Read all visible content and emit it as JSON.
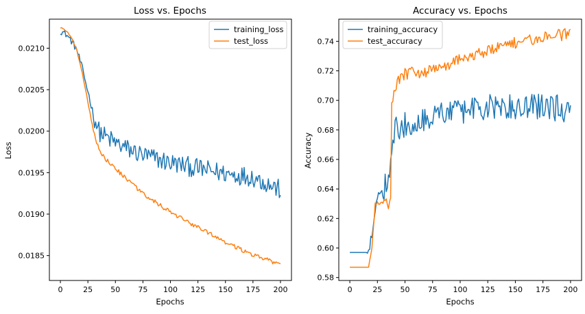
{
  "chart_data": [
    {
      "type": "line",
      "title": "Loss vs. Epochs",
      "xlabel": "Epochs",
      "ylabel": "Loss",
      "xlim": [
        -10,
        210
      ],
      "ylim": [
        0.0182,
        0.02135
      ],
      "xticks": [
        0,
        25,
        50,
        75,
        100,
        125,
        150,
        175,
        200
      ],
      "xtick_labels": [
        "0",
        "25",
        "50",
        "75",
        "100",
        "125",
        "150",
        "175",
        "200"
      ],
      "yticks": [
        0.0185,
        0.019,
        0.0195,
        0.02,
        0.0205,
        0.021
      ],
      "ytick_labels": [
        "0.0185",
        "0.0190",
        "0.0195",
        "0.0200",
        "0.0205",
        "0.0210"
      ],
      "grid": false,
      "legend_position": "top-right",
      "series": [
        {
          "name": "training_loss",
          "color": "#1f77b4",
          "anchors": [
            [
              0,
              0.02121
            ],
            [
              5,
              0.02117
            ],
            [
              10,
              0.02109
            ],
            [
              15,
              0.02098
            ],
            [
              20,
              0.02075
            ],
            [
              25,
              0.02048
            ],
            [
              30,
              0.0202
            ],
            [
              35,
              0.02
            ],
            [
              40,
              0.01994
            ],
            [
              50,
              0.01986
            ],
            [
              60,
              0.01979
            ],
            [
              75,
              0.01971
            ],
            [
              100,
              0.01962
            ],
            [
              125,
              0.01955
            ],
            [
              150,
              0.01949
            ],
            [
              175,
              0.01945
            ],
            [
              200,
              0.01929
            ]
          ],
          "noise": 0.00012
        },
        {
          "name": "test_loss",
          "color": "#ff7f0e",
          "anchors": [
            [
              0,
              0.02125
            ],
            [
              5,
              0.02121
            ],
            [
              10,
              0.02113
            ],
            [
              15,
              0.02097
            ],
            [
              20,
              0.0207
            ],
            [
              25,
              0.02035
            ],
            [
              30,
              0.02
            ],
            [
              35,
              0.01978
            ],
            [
              40,
              0.01968
            ],
            [
              50,
              0.01955
            ],
            [
              60,
              0.01942
            ],
            [
              75,
              0.01925
            ],
            [
              100,
              0.01902
            ],
            [
              125,
              0.01884
            ],
            [
              150,
              0.01866
            ],
            [
              175,
              0.01851
            ],
            [
              200,
              0.01839
            ]
          ],
          "noise": 2.5e-05
        }
      ]
    },
    {
      "type": "line",
      "title": "Accuracy vs. Epochs",
      "xlabel": "Epochs",
      "ylabel": "Accuracy",
      "xlim": [
        -10,
        210
      ],
      "ylim": [
        0.578,
        0.755
      ],
      "xticks": [
        0,
        25,
        50,
        75,
        100,
        125,
        150,
        175,
        200
      ],
      "xtick_labels": [
        "0",
        "25",
        "50",
        "75",
        "100",
        "125",
        "150",
        "175",
        "200"
      ],
      "yticks": [
        0.58,
        0.6,
        0.62,
        0.64,
        0.66,
        0.68,
        0.7,
        0.72,
        0.74
      ],
      "ytick_labels": [
        "0.58",
        "0.60",
        "0.62",
        "0.64",
        "0.66",
        "0.68",
        "0.70",
        "0.72",
        "0.74"
      ],
      "grid": false,
      "legend_position": "top-left",
      "series": [
        {
          "name": "training_accuracy",
          "color": "#1f77b4",
          "anchors": [
            [
              0,
              0.597
            ],
            [
              15,
              0.597
            ],
            [
              18,
              0.6
            ],
            [
              22,
              0.62
            ],
            [
              25,
              0.635
            ],
            [
              30,
              0.638
            ],
            [
              35,
              0.65
            ],
            [
              38,
              0.665
            ],
            [
              40,
              0.68
            ],
            [
              50,
              0.683
            ],
            [
              75,
              0.69
            ],
            [
              100,
              0.693
            ],
            [
              125,
              0.695
            ],
            [
              150,
              0.695
            ],
            [
              175,
              0.696
            ],
            [
              195,
              0.694
            ],
            [
              200,
              0.698
            ]
          ],
          "noise": 0.009
        },
        {
          "name": "test_accuracy",
          "color": "#ff7f0e",
          "anchors": [
            [
              0,
              0.587
            ],
            [
              17,
              0.587
            ],
            [
              20,
              0.6
            ],
            [
              23,
              0.63
            ],
            [
              30,
              0.63
            ],
            [
              37,
              0.63
            ],
            [
              38,
              0.7
            ],
            [
              40,
              0.705
            ],
            [
              45,
              0.715
            ],
            [
              50,
              0.718
            ],
            [
              75,
              0.72
            ],
            [
              100,
              0.728
            ],
            [
              125,
              0.734
            ],
            [
              150,
              0.739
            ],
            [
              175,
              0.743
            ],
            [
              200,
              0.745
            ]
          ],
          "noise": 0.004
        }
      ]
    }
  ]
}
